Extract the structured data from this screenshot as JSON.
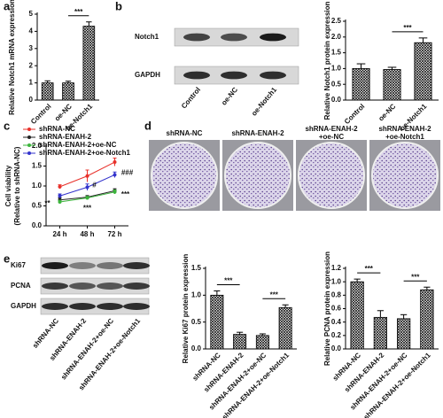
{
  "chart_data": [
    {
      "type": "bar",
      "panel": "a",
      "ylabel": "Relative Notch1 mRNA expression",
      "categories": [
        "Control",
        "oe-NC",
        "oe-Notch1"
      ],
      "values": [
        1.0,
        1.0,
        4.3
      ],
      "errors": [
        0.12,
        0.1,
        0.25
      ],
      "color": "#000000",
      "ylim": [
        0,
        5
      ],
      "yticks": [
        0,
        1,
        2,
        3,
        4,
        5
      ],
      "annotations": [
        "***"
      ]
    },
    {
      "type": "bar",
      "ylabel": "Relative Notch1 protein expression",
      "categories": [
        "Control",
        "oe-NC",
        "oe-Notch1"
      ],
      "values": [
        1.0,
        0.97,
        1.82
      ],
      "errors": [
        0.15,
        0.07,
        0.15
      ],
      "color": "#000000",
      "ylim": [
        0,
        2.5
      ],
      "yticks": [
        {
          "value": 0,
          "label": "0.0"
        },
        0.5,
        {
          "value": 1,
          "label": "1.0"
        },
        1.5,
        {
          "value": 2,
          "label": "2.0"
        },
        2.5
      ],
      "annotations": [
        "***"
      ]
    },
    {
      "type": "line",
      "panel": "c",
      "ylabel": [
        "Cell viability",
        "(Relative to shRNA-NC)"
      ],
      "categories": [
        "24 h",
        "48 h",
        "72 h"
      ],
      "ylim": [
        0,
        2
      ],
      "yticks": [
        {
          "value": 0,
          "label": "0.0"
        },
        0.5,
        {
          "value": 1,
          "label": "1.0"
        },
        1.5,
        {
          "value": 2,
          "label": "2.0"
        }
      ],
      "series": [
        {
          "name": "shRNA-NC",
          "color": "#e8302a",
          "values": [
            0.98,
            1.25,
            1.6
          ],
          "errors": [
            0.05,
            0.15,
            0.1
          ]
        },
        {
          "name": "shRNA-ENAH-2",
          "color": "#222222",
          "values": [
            0.65,
            0.72,
            0.88
          ],
          "errors": [
            0.05,
            0.04,
            0.05
          ]
        },
        {
          "name": "shRNA-ENAH-2+oe-NC",
          "color": "#3cb43c",
          "values": [
            0.6,
            0.7,
            0.85
          ],
          "errors": [
            0.04,
            0.04,
            0.05
          ]
        },
        {
          "name": "shRNA-ENAH-2+oe-Notch1",
          "color": "#3333cc",
          "values": [
            0.75,
            0.97,
            1.28
          ],
          "errors": [
            0.05,
            0.08,
            0.07
          ]
        }
      ],
      "annotations": [
        "**",
        "***",
        "***",
        "#",
        "###"
      ]
    },
    {
      "type": "bar",
      "ylabel": "Relative Ki67 protein expression",
      "categories": [
        "shRNA-NC",
        "shRNA-ENAH-2",
        "shRNA-ENAH-2+oe-NC",
        "shRNA-ENAH-2+oe-Notch1"
      ],
      "values": [
        1.0,
        0.27,
        0.25,
        0.77
      ],
      "errors": [
        0.08,
        0.04,
        0.03,
        0.05
      ],
      "color": "#000000",
      "ylim": [
        0,
        1.5
      ],
      "yticks": [
        {
          "value": 0,
          "label": "0.0"
        },
        0.5,
        {
          "value": 1,
          "label": "1.0"
        },
        1.5
      ],
      "annotations": [
        "***",
        "***"
      ]
    },
    {
      "type": "bar",
      "ylabel": "Relative PCNA protein expression",
      "categories": [
        "shRNA-NC",
        "shRNA-ENAH-2",
        "shRNA-ENAH-2+oe-NC",
        "shRNA-ENAH-2+oe-Notch1"
      ],
      "values": [
        1.0,
        0.47,
        0.45,
        0.88
      ],
      "errors": [
        0.04,
        0.1,
        0.06,
        0.04
      ],
      "color": "#000000",
      "ylim": [
        0,
        1.2
      ],
      "yticks": [
        {
          "value": 0,
          "label": "0.0"
        },
        0.2,
        0.4,
        0.6,
        0.8,
        {
          "value": 1,
          "label": "1.0"
        },
        1.2
      ],
      "annotations": [
        "***",
        "***"
      ]
    }
  ],
  "blots": [
    {
      "panel": "b",
      "rows": [
        "Notch1",
        "GAPDH"
      ],
      "lanes": [
        "Control",
        "oe-NC",
        "oe-Notch1"
      ]
    },
    {
      "panel": "e",
      "rows": [
        "Ki67",
        "PCNA",
        "GAPDH"
      ],
      "lanes": [
        "shRNA-NC",
        "shRNA-ENAH-2",
        "shRNA-ENAH-2+oe-NC",
        "shRNA-ENAH-2+oe-Notch1"
      ]
    }
  ],
  "colony": {
    "panel": "d",
    "labels": [
      [
        "shRNA-NC"
      ],
      [
        "shRNA-ENAH-2"
      ],
      [
        "shRNA-ENAH-2",
        "+oe-NC"
      ],
      [
        "shRNA-ENAH-2",
        "+oe-Notch1"
      ]
    ]
  }
}
